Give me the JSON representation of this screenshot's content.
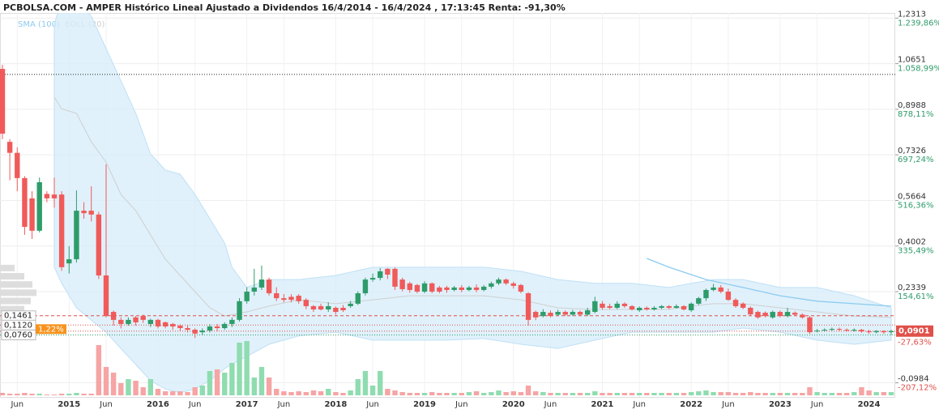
{
  "chart_data": {
    "type": "candlestick",
    "title": "PCBOLSA.COM - AMPER Histórico Lineal Ajustado a Dividendos 16/4/2014 - 16/4/2024 , 17:13:45 Renta: -91,30%",
    "legend": [
      {
        "name": "SMA (100)",
        "color": "#8ccbf0"
      },
      {
        "name": "BOLL (20)",
        "color": "#cfcfcf"
      }
    ],
    "up_color": "#2e9c6a",
    "down_color": "#f05a5a",
    "volume_up_color": "#8fdcb0",
    "volume_down_color": "#f6a4a4",
    "categories": [
      null,
      null,
      "Jun",
      null,
      null,
      null,
      null,
      null,
      null,
      "2015",
      null,
      null,
      null,
      null,
      "Jun",
      null,
      null,
      null,
      null,
      null,
      null,
      "2016",
      null,
      null,
      null,
      null,
      "Jun",
      null,
      null,
      null,
      null,
      null,
      null,
      "2017",
      null,
      null,
      null,
      null,
      "Jun",
      null,
      null,
      null,
      null,
      null,
      null,
      "2018",
      null,
      null,
      null,
      null,
      "Jun",
      null,
      null,
      null,
      null,
      null,
      null,
      "2019",
      null,
      null,
      null,
      null,
      "Jun",
      null,
      null,
      null,
      null,
      null,
      null,
      "2020",
      null,
      null,
      null,
      null,
      "Jun",
      null,
      null,
      null,
      null,
      null,
      null,
      "2021",
      null,
      null,
      null,
      null,
      "Jun",
      null,
      null,
      null,
      null,
      null,
      null,
      "2022",
      null,
      null,
      null,
      null,
      "Jun",
      null,
      null,
      null,
      null,
      null,
      null,
      "2023",
      null,
      null,
      null,
      null,
      "Jun",
      null,
      null,
      null,
      null,
      null,
      null,
      "2024",
      null,
      null,
      null
    ],
    "open": [
      1.046,
      0.78,
      0.74,
      0.648,
      0.574,
      0.456,
      0.59,
      0.588,
      0.588,
      0.337,
      0.352,
      0.529,
      0.529,
      0.515,
      0.293,
      0.16,
      0.131,
      0.116,
      0.14,
      0.145,
      0.116,
      0.131,
      0.122,
      0.116,
      0.11,
      0.101,
      0.095,
      0.086,
      0.092,
      0.107,
      0.101,
      0.116,
      0.131,
      0.199,
      0.234,
      0.249,
      0.278,
      0.228,
      0.21,
      0.215,
      0.219,
      0.204,
      0.181,
      0.181,
      0.169,
      0.175,
      0.175,
      0.181,
      0.19,
      0.228,
      0.278,
      0.284,
      0.317,
      0.317,
      0.278,
      0.264,
      0.258,
      0.234,
      0.264,
      0.249,
      0.249,
      0.24,
      0.249,
      0.24,
      0.249,
      0.24,
      0.252,
      0.264,
      0.278,
      0.264,
      0.258,
      0.228,
      0.16,
      0.145,
      0.157,
      0.15,
      0.16,
      0.15,
      0.16,
      0.15,
      0.16,
      0.19,
      0.181,
      0.175,
      0.19,
      0.181,
      0.166,
      0.175,
      0.169,
      0.175,
      0.181,
      0.175,
      0.181,
      0.166,
      0.19,
      0.21,
      0.24,
      0.249,
      0.234,
      0.204,
      0.19,
      0.175,
      0.16,
      0.157,
      0.14,
      0.16,
      0.145,
      0.157,
      0.15,
      0.14,
      0.09,
      0.092,
      0.095,
      0.098,
      0.095,
      0.092,
      0.095,
      0.089,
      0.086,
      0.09,
      0.086
    ],
    "high": [
      1.061,
      0.79,
      0.76,
      0.655,
      0.6,
      0.65,
      0.6,
      0.65,
      0.6,
      0.4,
      0.603,
      0.56,
      0.618,
      0.525,
      0.698,
      0.165,
      0.14,
      0.14,
      0.145,
      0.15,
      0.135,
      0.135,
      0.125,
      0.12,
      0.115,
      0.11,
      0.1,
      0.1,
      0.115,
      0.116,
      0.122,
      0.14,
      0.21,
      0.25,
      0.317,
      0.329,
      0.285,
      0.25,
      0.225,
      0.225,
      0.225,
      0.21,
      0.185,
      0.19,
      0.195,
      0.18,
      0.185,
      0.2,
      0.235,
      0.285,
      0.3,
      0.32,
      0.32,
      0.322,
      0.285,
      0.27,
      0.262,
      0.272,
      0.268,
      0.255,
      0.255,
      0.255,
      0.258,
      0.255,
      0.26,
      0.258,
      0.27,
      0.285,
      0.282,
      0.27,
      0.262,
      0.232,
      0.165,
      0.17,
      0.165,
      0.168,
      0.165,
      0.168,
      0.165,
      0.175,
      0.215,
      0.2,
      0.19,
      0.199,
      0.195,
      0.185,
      0.18,
      0.18,
      0.181,
      0.185,
      0.185,
      0.188,
      0.185,
      0.195,
      0.215,
      0.245,
      0.262,
      0.258,
      0.245,
      0.21,
      0.195,
      0.18,
      0.165,
      0.162,
      0.165,
      0.165,
      0.175,
      0.162,
      0.155,
      0.145,
      0.098,
      0.1,
      0.103,
      0.103,
      0.1,
      0.1,
      0.098,
      0.095,
      0.094,
      0.093,
      0.095
    ],
    "low": [
      0.79,
      0.64,
      0.6,
      0.441,
      0.426,
      0.45,
      0.56,
      0.54,
      0.31,
      0.3,
      0.34,
      0.5,
      0.49,
      0.28,
      0.14,
      0.11,
      0.1,
      0.11,
      0.11,
      0.12,
      0.105,
      0.1,
      0.1,
      0.095,
      0.09,
      0.085,
      0.065,
      0.075,
      0.085,
      0.09,
      0.095,
      0.105,
      0.125,
      0.19,
      0.22,
      0.24,
      0.22,
      0.2,
      0.195,
      0.195,
      0.19,
      0.17,
      0.16,
      0.165,
      0.16,
      0.15,
      0.16,
      0.175,
      0.185,
      0.22,
      0.27,
      0.275,
      0.28,
      0.24,
      0.235,
      0.23,
      0.228,
      0.228,
      0.228,
      0.228,
      0.23,
      0.235,
      0.232,
      0.235,
      0.232,
      0.235,
      0.245,
      0.258,
      0.258,
      0.245,
      0.228,
      0.11,
      0.13,
      0.14,
      0.14,
      0.145,
      0.145,
      0.145,
      0.145,
      0.145,
      0.155,
      0.168,
      0.17,
      0.17,
      0.175,
      0.165,
      0.16,
      0.165,
      0.165,
      0.17,
      0.17,
      0.172,
      0.165,
      0.16,
      0.185,
      0.2,
      0.235,
      0.228,
      0.2,
      0.175,
      0.17,
      0.145,
      0.135,
      0.14,
      0.135,
      0.14,
      0.14,
      0.145,
      0.135,
      0.08,
      0.085,
      0.088,
      0.09,
      0.09,
      0.088,
      0.088,
      0.084,
      0.08,
      0.082,
      0.08,
      0.076
    ],
    "close": [
      0.81,
      0.74,
      0.648,
      0.47,
      0.456,
      0.633,
      0.574,
      0.574,
      0.323,
      0.352,
      0.529,
      0.52,
      0.515,
      0.293,
      0.145,
      0.131,
      0.116,
      0.131,
      0.122,
      0.131,
      0.131,
      0.107,
      0.107,
      0.107,
      0.101,
      0.095,
      0.081,
      0.092,
      0.107,
      0.101,
      0.116,
      0.131,
      0.199,
      0.234,
      0.249,
      0.278,
      0.228,
      0.21,
      0.204,
      0.204,
      0.199,
      0.181,
      0.169,
      0.169,
      0.181,
      0.16,
      0.166,
      0.19,
      0.228,
      0.278,
      0.284,
      0.308,
      0.296,
      0.252,
      0.243,
      0.24,
      0.234,
      0.264,
      0.234,
      0.234,
      0.24,
      0.249,
      0.24,
      0.249,
      0.24,
      0.252,
      0.264,
      0.278,
      0.264,
      0.255,
      0.234,
      0.131,
      0.14,
      0.16,
      0.145,
      0.16,
      0.15,
      0.16,
      0.15,
      0.166,
      0.199,
      0.175,
      0.175,
      0.19,
      0.181,
      0.169,
      0.175,
      0.169,
      0.175,
      0.181,
      0.175,
      0.181,
      0.169,
      0.19,
      0.21,
      0.24,
      0.249,
      0.234,
      0.204,
      0.181,
      0.175,
      0.151,
      0.14,
      0.145,
      0.16,
      0.145,
      0.16,
      0.15,
      0.14,
      0.086,
      0.092,
      0.095,
      0.098,
      0.095,
      0.092,
      0.095,
      0.089,
      0.086,
      0.09,
      0.086,
      0.0901
    ],
    "volume": [
      3,
      2,
      2,
      3,
      2,
      2,
      1,
      1,
      2,
      2,
      3,
      2,
      2,
      62,
      35,
      28,
      15,
      20,
      18,
      10,
      20,
      8,
      5,
      5,
      5,
      4,
      10,
      12,
      30,
      32,
      28,
      40,
      65,
      67,
      22,
      35,
      22,
      8,
      5,
      4,
      5,
      4,
      6,
      5,
      8,
      4,
      3,
      6,
      20,
      30,
      12,
      30,
      8,
      6,
      4,
      3,
      3,
      3,
      4,
      3,
      3,
      3,
      3,
      4,
      5,
      3,
      4,
      6,
      4,
      5,
      4,
      12,
      5,
      4,
      3,
      3,
      3,
      3,
      3,
      3,
      5,
      3,
      3,
      3,
      3,
      3,
      3,
      3,
      3,
      3,
      3,
      3,
      3,
      4,
      5,
      6,
      4,
      4,
      4,
      3,
      3,
      4,
      3,
      3,
      3,
      3,
      3,
      3,
      3,
      10,
      4,
      3,
      3,
      3,
      3,
      4,
      10,
      6,
      4,
      4,
      4
    ],
    "bollinger": {
      "x": [
        7,
        8,
        10,
        12,
        14,
        16,
        18,
        20,
        22,
        24,
        26,
        28,
        30,
        31,
        33,
        36,
        40,
        45,
        50,
        55,
        60,
        65,
        70,
        75,
        80,
        85,
        90,
        93,
        96,
        100,
        105,
        110,
        115,
        120
      ],
      "upper": [
        1.209,
        1.297,
        1.297,
        1.238,
        1.12,
        1.002,
        0.884,
        0.736,
        0.677,
        0.662,
        0.588,
        0.5,
        0.411,
        0.323,
        0.249,
        0.278,
        0.278,
        0.293,
        0.323,
        0.323,
        0.323,
        0.323,
        0.308,
        0.278,
        0.264,
        0.264,
        0.249,
        0.264,
        0.278,
        0.278,
        0.249,
        0.249,
        0.219,
        0.175
      ],
      "mid": [
        0.943,
        0.9,
        0.884,
        0.78,
        0.706,
        0.588,
        0.529,
        0.441,
        0.352,
        0.293,
        0.234,
        0.175,
        0.145,
        0.15,
        0.16,
        0.181,
        0.204,
        0.19,
        0.204,
        0.219,
        0.219,
        0.219,
        0.204,
        0.175,
        0.169,
        0.169,
        0.169,
        0.181,
        0.19,
        0.19,
        0.175,
        0.16,
        0.145,
        0.14
      ],
      "lower": [
        0.323,
        0.264,
        0.175,
        0.13,
        0.086,
        0.026,
        -0.032,
        -0.091,
        -0.121,
        -0.135,
        -0.121,
        -0.091,
        -0.047,
        -0.03,
        -0.002,
        0.042,
        0.072,
        0.086,
        0.057,
        0.057,
        0.057,
        0.063,
        0.042,
        0.027,
        0.057,
        0.086,
        0.086,
        0.086,
        0.086,
        0.101,
        0.086,
        0.057,
        0.042,
        0.057
      ]
    },
    "sma": {
      "x": [
        87,
        90,
        95,
        100,
        105,
        110,
        115,
        120
      ],
      "values": [
        0.355,
        0.323,
        0.278,
        0.249,
        0.219,
        0.199,
        0.19,
        0.181
      ]
    },
    "volume_profile": {
      "prices": [
        0.32,
        0.29,
        0.26,
        0.23,
        0.2,
        0.17,
        0.14,
        0.11,
        0.08
      ],
      "values": [
        18,
        30,
        40,
        45,
        38,
        30,
        42,
        35,
        40
      ]
    },
    "ylim": [
      -0.15,
      1.25
    ],
    "yticks": [
      {
        "value": 1.2313,
        "label": "1,2313"
      },
      {
        "value": 1.0651,
        "label": "1,0651"
      },
      {
        "value": 0.8988,
        "label": "0,8988"
      },
      {
        "value": 0.7326,
        "label": "0,7326"
      },
      {
        "value": 0.5664,
        "label": "0,5664"
      },
      {
        "value": 0.4002,
        "label": "0,4002"
      },
      {
        "value": 0.2339,
        "label": "0,2339"
      },
      {
        "value": -0.0984,
        "label": "-0,0984"
      }
    ],
    "ytick_returns": [
      "1.239,86%",
      "1.058,99%",
      "878,11%",
      "697,24%",
      "516,36%",
      "335,49%",
      "154,61%",
      "-207,12%"
    ],
    "max_line": 1.026,
    "ref_lines": [
      {
        "value": 0.1461,
        "label": "0,1461",
        "color": "#e0504a",
        "style": "dashed"
      },
      {
        "value": 0.112,
        "label": "0,1120",
        "color": "#e0504a",
        "style": "dotted"
      },
      {
        "value": 0.076,
        "label": "0,0760",
        "color": "#2e9c6a",
        "style": "dotted"
      }
    ],
    "change_tag": "1,22%",
    "last_price": {
      "value": 0.0901,
      "label": "0,0901",
      "change": "-27,63%"
    },
    "grid": true
  }
}
